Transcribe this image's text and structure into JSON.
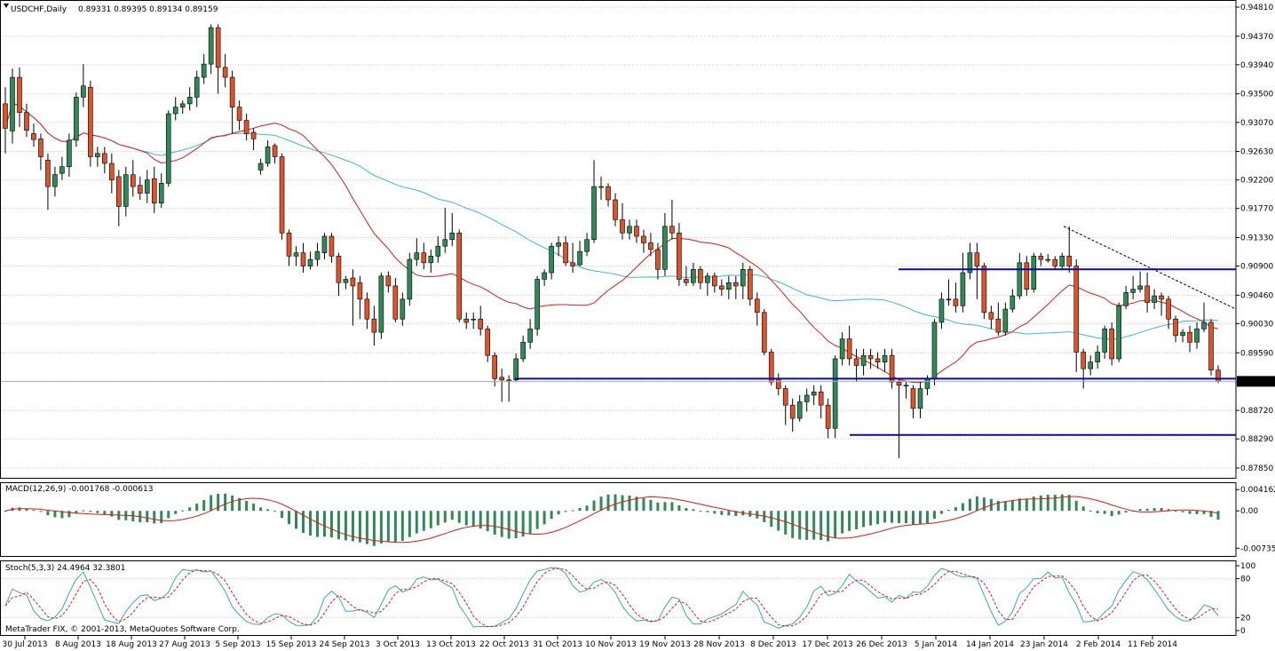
{
  "header": {
    "symbol": "USDCHF,Daily",
    "ohlc": "0.89331 0.89395 0.89134 0.89159"
  },
  "indicators": {
    "macd": "MACD(12,26,9) -0.001768 -0.000613",
    "stoch": "Stoch(5,3,3) 24.4964 32.3801"
  },
  "footer": {
    "copyright": "MetaTrader FIX, © 2001-2013, MetaQuotes Software Corp."
  },
  "colors": {
    "bull": "#2e8b57",
    "bear": "#e0522a",
    "ma_fast": "#e01818",
    "ma_slow": "#3cb8d8",
    "levels": "#0a0aa8",
    "macd_hist": "#2e8b57",
    "macd_signal": "#e01818",
    "stoch_main": "#3aa8a8",
    "stoch_signal": "#e01818"
  },
  "chart_data": {
    "type": "candlestick",
    "symbol": "USDCHF",
    "timeframe": "Daily",
    "last_price": "0.89159",
    "price_axis": {
      "ticks": [
        "0.94810",
        "0.94370",
        "0.93940",
        "0.93500",
        "0.93070",
        "0.92630",
        "0.92200",
        "0.91770",
        "0.91330",
        "0.90900",
        "0.90460",
        "0.90030",
        "0.89590",
        "0.89150",
        "0.88720",
        "0.88290",
        "0.87850"
      ],
      "ylim": [
        0.8785,
        0.9481
      ]
    },
    "date_axis": [
      "30 Jul 2013",
      "8 Aug 2013",
      "18 Aug 2013",
      "27 Aug 2013",
      "5 Sep 2013",
      "15 Sep 2013",
      "24 Sep 2013",
      "3 Oct 2013",
      "13 Oct 2013",
      "22 Oct 2013",
      "31 Oct 2013",
      "10 Nov 2013",
      "19 Nov 2013",
      "28 Nov 2013",
      "8 Dec 2013",
      "17 Dec 2013",
      "26 Dec 2013",
      "5 Jan 2014",
      "14 Jan 2014",
      "23 Jan 2014",
      "2 Feb 2014",
      "11 Feb 2014"
    ],
    "candles": [
      [
        0.9335,
        0.9298,
        0.926,
        0.936
      ],
      [
        0.9294,
        0.9375,
        0.9275,
        0.9388
      ],
      [
        0.9375,
        0.9322,
        0.93,
        0.939
      ],
      [
        0.9322,
        0.9295,
        0.9285,
        0.9335
      ],
      [
        0.929,
        0.9281,
        0.927,
        0.9305
      ],
      [
        0.9282,
        0.9255,
        0.9235,
        0.929
      ],
      [
        0.925,
        0.921,
        0.9175,
        0.926
      ],
      [
        0.921,
        0.9228,
        0.9195,
        0.924
      ],
      [
        0.923,
        0.924,
        0.922,
        0.9255
      ],
      [
        0.924,
        0.928,
        0.9225,
        0.929
      ],
      [
        0.928,
        0.9345,
        0.927,
        0.9352
      ],
      [
        0.9345,
        0.9362,
        0.933,
        0.9395
      ],
      [
        0.936,
        0.9255,
        0.924,
        0.937
      ],
      [
        0.9255,
        0.926,
        0.924,
        0.927
      ],
      [
        0.926,
        0.9245,
        0.923,
        0.927
      ],
      [
        0.9245,
        0.922,
        0.92,
        0.926
      ],
      [
        0.9225,
        0.918,
        0.915,
        0.9235
      ],
      [
        0.918,
        0.9228,
        0.9165,
        0.924
      ],
      [
        0.9228,
        0.921,
        0.9195,
        0.925
      ],
      [
        0.9212,
        0.92,
        0.919,
        0.9225
      ],
      [
        0.92,
        0.922,
        0.9185,
        0.9235
      ],
      [
        0.9222,
        0.9185,
        0.917,
        0.924
      ],
      [
        0.9185,
        0.9215,
        0.9178,
        0.923
      ],
      [
        0.9215,
        0.932,
        0.921,
        0.9325
      ],
      [
        0.932,
        0.933,
        0.931,
        0.9345
      ],
      [
        0.933,
        0.9335,
        0.932,
        0.934
      ],
      [
        0.9335,
        0.9345,
        0.9325,
        0.936
      ],
      [
        0.9345,
        0.9375,
        0.933,
        0.9385
      ],
      [
        0.9375,
        0.9395,
        0.9365,
        0.941
      ],
      [
        0.9395,
        0.945,
        0.938,
        0.9455
      ],
      [
        0.945,
        0.939,
        0.935,
        0.9455
      ],
      [
        0.939,
        0.9375,
        0.936,
        0.941
      ],
      [
        0.9375,
        0.933,
        0.929,
        0.9385
      ],
      [
        0.933,
        0.931,
        0.9295,
        0.934
      ],
      [
        0.931,
        0.929,
        0.928,
        0.932
      ],
      [
        0.9292,
        0.9282,
        0.9265,
        0.9298
      ],
      [
        0.9235,
        0.9245,
        0.9228,
        0.9252
      ],
      [
        0.9245,
        0.927,
        0.924,
        0.928
      ],
      [
        0.9272,
        0.9255,
        0.9245,
        0.9275
      ],
      [
        0.9255,
        0.914,
        0.913,
        0.926
      ],
      [
        0.914,
        0.9105,
        0.909,
        0.9145
      ],
      [
        0.9105,
        0.911,
        0.909,
        0.912
      ],
      [
        0.911,
        0.909,
        0.908,
        0.9125
      ],
      [
        0.909,
        0.91,
        0.9085,
        0.9112
      ],
      [
        0.91,
        0.9112,
        0.909,
        0.9125
      ],
      [
        0.911,
        0.9135,
        0.91,
        0.914
      ],
      [
        0.9135,
        0.9105,
        0.9095,
        0.914
      ],
      [
        0.9105,
        0.9065,
        0.9045,
        0.911
      ],
      [
        0.9065,
        0.907,
        0.9055,
        0.9075
      ],
      [
        0.9072,
        0.906,
        0.9,
        0.9085
      ],
      [
        0.9065,
        0.904,
        0.901,
        0.9075
      ],
      [
        0.904,
        0.901,
        0.8995,
        0.905
      ],
      [
        0.901,
        0.899,
        0.897,
        0.903
      ],
      [
        0.899,
        0.9075,
        0.898,
        0.908
      ],
      [
        0.9075,
        0.906,
        0.905,
        0.9082
      ],
      [
        0.906,
        0.901,
        0.9005,
        0.9072
      ],
      [
        0.901,
        0.904,
        0.9,
        0.905
      ],
      [
        0.904,
        0.91,
        0.903,
        0.911
      ],
      [
        0.91,
        0.911,
        0.909,
        0.9132
      ],
      [
        0.911,
        0.9095,
        0.9085,
        0.9125
      ],
      [
        0.9095,
        0.9105,
        0.908,
        0.9115
      ],
      [
        0.9105,
        0.912,
        0.9095,
        0.9135
      ],
      [
        0.912,
        0.913,
        0.911,
        0.9178
      ],
      [
        0.913,
        0.914,
        0.912,
        0.917
      ],
      [
        0.914,
        0.901,
        0.9005,
        0.9145
      ],
      [
        0.901,
        0.9005,
        0.8995,
        0.902
      ],
      [
        0.901,
        0.901,
        0.8995,
        0.902
      ],
      [
        0.901,
        0.8995,
        0.8985,
        0.903
      ],
      [
        0.8995,
        0.8955,
        0.8945,
        0.9
      ],
      [
        0.8955,
        0.892,
        0.8908,
        0.896
      ],
      [
        0.8922,
        0.8918,
        0.8885,
        0.8935
      ],
      [
        0.8918,
        0.8918,
        0.8885,
        0.8925
      ],
      [
        0.8918,
        0.895,
        0.8915,
        0.8958
      ],
      [
        0.895,
        0.8975,
        0.8945,
        0.8985
      ],
      [
        0.8975,
        0.8995,
        0.8965,
        0.901
      ],
      [
        0.8995,
        0.907,
        0.8985,
        0.9075
      ],
      [
        0.907,
        0.908,
        0.906,
        0.9085
      ],
      [
        0.908,
        0.912,
        0.907,
        0.9125
      ],
      [
        0.912,
        0.9125,
        0.9105,
        0.9135
      ],
      [
        0.9125,
        0.9095,
        0.909,
        0.9135
      ],
      [
        0.9095,
        0.909,
        0.908,
        0.9125
      ],
      [
        0.9092,
        0.9112,
        0.909,
        0.9128
      ],
      [
        0.9112,
        0.913,
        0.9105,
        0.914
      ],
      [
        0.913,
        0.921,
        0.9125,
        0.925
      ],
      [
        0.921,
        0.921,
        0.919,
        0.9225
      ],
      [
        0.921,
        0.919,
        0.918,
        0.9215
      ],
      [
        0.919,
        0.916,
        0.915,
        0.92
      ],
      [
        0.916,
        0.914,
        0.913,
        0.9185
      ],
      [
        0.914,
        0.915,
        0.913,
        0.916
      ],
      [
        0.915,
        0.9135,
        0.9125,
        0.916
      ],
      [
        0.9135,
        0.9125,
        0.911,
        0.9145
      ],
      [
        0.9125,
        0.9115,
        0.9105,
        0.914
      ],
      [
        0.9115,
        0.9085,
        0.907,
        0.9125
      ],
      [
        0.9085,
        0.915,
        0.9075,
        0.917
      ],
      [
        0.915,
        0.914,
        0.913,
        0.919
      ],
      [
        0.914,
        0.907,
        0.906,
        0.9155
      ],
      [
        0.907,
        0.9065,
        0.906,
        0.909
      ],
      [
        0.9065,
        0.9085,
        0.906,
        0.9095
      ],
      [
        0.9085,
        0.9065,
        0.9055,
        0.909
      ],
      [
        0.9065,
        0.9075,
        0.9045,
        0.908
      ],
      [
        0.9075,
        0.906,
        0.905,
        0.908
      ],
      [
        0.906,
        0.9055,
        0.9045,
        0.907
      ],
      [
        0.9055,
        0.9065,
        0.904,
        0.9075
      ],
      [
        0.9065,
        0.906,
        0.904,
        0.9075
      ],
      [
        0.906,
        0.9085,
        0.904,
        0.9095
      ],
      [
        0.9085,
        0.904,
        0.903,
        0.909
      ],
      [
        0.904,
        0.902,
        0.9,
        0.905
      ],
      [
        0.902,
        0.896,
        0.8955,
        0.9025
      ],
      [
        0.896,
        0.8915,
        0.891,
        0.8965
      ],
      [
        0.892,
        0.8905,
        0.8895,
        0.8928
      ],
      [
        0.8905,
        0.888,
        0.885,
        0.891
      ],
      [
        0.888,
        0.886,
        0.884,
        0.889
      ],
      [
        0.886,
        0.8885,
        0.8855,
        0.8895
      ],
      [
        0.8885,
        0.8895,
        0.887,
        0.8905
      ],
      [
        0.8895,
        0.89,
        0.888,
        0.891
      ],
      [
        0.89,
        0.888,
        0.886,
        0.891
      ],
      [
        0.888,
        0.8845,
        0.883,
        0.889
      ],
      [
        0.8845,
        0.895,
        0.883,
        0.8955
      ],
      [
        0.895,
        0.898,
        0.894,
        0.899
      ],
      [
        0.898,
        0.895,
        0.894,
        0.9
      ],
      [
        0.895,
        0.894,
        0.8915,
        0.8965
      ],
      [
        0.894,
        0.8955,
        0.8925,
        0.8965
      ],
      [
        0.8955,
        0.895,
        0.8935,
        0.8965
      ],
      [
        0.895,
        0.8945,
        0.8935,
        0.896
      ],
      [
        0.8945,
        0.8955,
        0.893,
        0.8965
      ],
      [
        0.8955,
        0.8915,
        0.8905,
        0.8965
      ],
      [
        0.8915,
        0.891,
        0.88,
        0.892
      ],
      [
        0.891,
        0.891,
        0.889,
        0.8915
      ],
      [
        0.8905,
        0.8875,
        0.886,
        0.891
      ],
      [
        0.8875,
        0.8905,
        0.886,
        0.8915
      ],
      [
        0.8905,
        0.892,
        0.8895,
        0.8925
      ],
      [
        0.892,
        0.9005,
        0.891,
        0.901
      ],
      [
        0.9005,
        0.904,
        0.8995,
        0.905
      ],
      [
        0.904,
        0.904,
        0.903,
        0.907
      ],
      [
        0.904,
        0.903,
        0.902,
        0.9065
      ],
      [
        0.903,
        0.908,
        0.902,
        0.911
      ],
      [
        0.908,
        0.911,
        0.907,
        0.9125
      ],
      [
        0.911,
        0.909,
        0.904,
        0.9125
      ],
      [
        0.909,
        0.902,
        0.901,
        0.9095
      ],
      [
        0.902,
        0.901,
        0.8995,
        0.903
      ],
      [
        0.901,
        0.899,
        0.8985,
        0.9035
      ],
      [
        0.899,
        0.9025,
        0.8985,
        0.9035
      ],
      [
        0.9025,
        0.9045,
        0.902,
        0.9055
      ],
      [
        0.9045,
        0.9095,
        0.904,
        0.911
      ],
      [
        0.9095,
        0.9055,
        0.9045,
        0.9105
      ],
      [
        0.9055,
        0.9105,
        0.905,
        0.911
      ],
      [
        0.9105,
        0.91,
        0.909,
        0.911
      ],
      [
        0.91,
        0.91,
        0.9095,
        0.9108
      ],
      [
        0.91,
        0.909,
        0.9085,
        0.9105
      ],
      [
        0.909,
        0.9105,
        0.9085,
        0.911
      ],
      [
        0.9105,
        0.909,
        0.908,
        0.915
      ],
      [
        0.909,
        0.896,
        0.893,
        0.91
      ],
      [
        0.896,
        0.8935,
        0.8905,
        0.8965
      ],
      [
        0.8935,
        0.8945,
        0.8925,
        0.8955
      ],
      [
        0.8945,
        0.896,
        0.8935,
        0.897
      ],
      [
        0.896,
        0.8995,
        0.895,
        0.9
      ],
      [
        0.8995,
        0.895,
        0.894,
        0.9005
      ],
      [
        0.895,
        0.903,
        0.8945,
        0.9035
      ],
      [
        0.903,
        0.905,
        0.9025,
        0.906
      ],
      [
        0.905,
        0.9055,
        0.904,
        0.9075
      ],
      [
        0.9055,
        0.906,
        0.905,
        0.9082
      ],
      [
        0.906,
        0.9035,
        0.902,
        0.908
      ],
      [
        0.9035,
        0.9045,
        0.9025,
        0.9055
      ],
      [
        0.9045,
        0.904,
        0.9015,
        0.905
      ],
      [
        0.904,
        0.901,
        0.8995,
        0.9045
      ],
      [
        0.901,
        0.8985,
        0.8975,
        0.9015
      ],
      [
        0.8985,
        0.899,
        0.8975,
        0.8995
      ],
      [
        0.899,
        0.8975,
        0.896,
        0.9
      ],
      [
        0.8975,
        0.8995,
        0.8965,
        0.9005
      ],
      [
        0.8995,
        0.9005,
        0.899,
        0.9035
      ],
      [
        0.9005,
        0.8933,
        0.8925,
        0.901
      ],
      [
        0.8933,
        0.8916,
        0.8913,
        0.894
      ]
    ],
    "horizontal_levels": [
      0.9085,
      0.892,
      0.8835
    ],
    "current_price_line": 0.89159,
    "macd": {
      "label": "MACD(12,26,9) -0.001768 -0.000613",
      "ticks": [
        "0.004162",
        "0.00",
        "-0.007353"
      ],
      "ylim": [
        -0.0083,
        0.0049
      ]
    },
    "stochastic": {
      "label": "Stoch(5,3,3) 24.4964 32.3801",
      "ticks": [
        "100",
        "80",
        "20",
        "0"
      ],
      "ylim": [
        0,
        100
      ]
    }
  }
}
